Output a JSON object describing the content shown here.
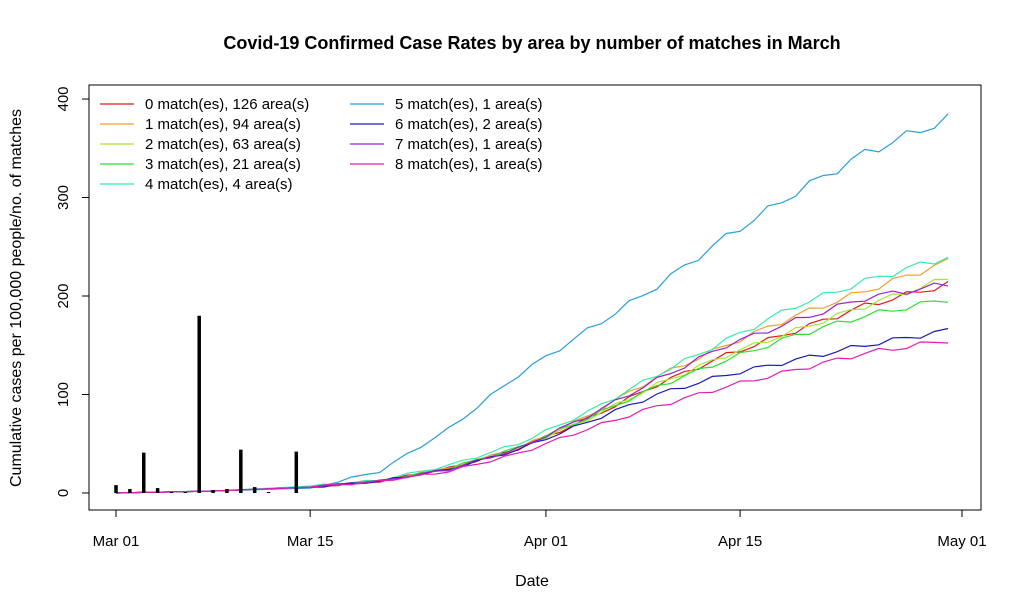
{
  "chart_data": {
    "type": "line",
    "title": "Covid-19 Confirmed Case Rates by area by number of matches in March",
    "xlabel": "Date",
    "ylabel": "Cumulative cases per 100,000 people/no. of matches",
    "x_start": "2020-03-01",
    "x_end": "2020-04-30",
    "xlim": [
      "2020-03-01",
      "2020-05-01"
    ],
    "ylim": [
      0,
      400
    ],
    "x_ticks": [
      "Mar 01",
      "Mar 15",
      "Apr 01",
      "Apr 15",
      "May 01"
    ],
    "y_ticks": [
      "0",
      "100",
      "200",
      "300",
      "400"
    ],
    "legend_position": "top-left",
    "grid": false,
    "series": [
      {
        "name": "0 match(es), 126 area(s)",
        "color": "#e41a1c",
        "x": [
          "2020-03-01",
          "2020-03-08",
          "2020-03-15",
          "2020-03-20",
          "2020-03-25",
          "2020-03-30",
          "2020-04-04",
          "2020-04-09",
          "2020-04-14",
          "2020-04-19",
          "2020-04-24",
          "2020-04-30"
        ],
        "values": [
          0,
          2,
          6,
          12,
          25,
          45,
          75,
          110,
          140,
          165,
          190,
          212
        ]
      },
      {
        "name": "1 match(es), 94 area(s)",
        "color": "#f0a030",
        "x": [
          "2020-03-01",
          "2020-03-08",
          "2020-03-15",
          "2020-03-20",
          "2020-03-25",
          "2020-03-30",
          "2020-04-04",
          "2020-04-09",
          "2020-04-14",
          "2020-04-19",
          "2020-04-24",
          "2020-04-30"
        ],
        "values": [
          0,
          2,
          6,
          12,
          25,
          45,
          78,
          118,
          150,
          180,
          205,
          235
        ]
      },
      {
        "name": "2 match(es), 63 area(s)",
        "color": "#a6e830",
        "x": [
          "2020-03-01",
          "2020-03-08",
          "2020-03-15",
          "2020-03-20",
          "2020-03-25",
          "2020-03-30",
          "2020-04-04",
          "2020-04-09",
          "2020-04-14",
          "2020-04-19",
          "2020-04-24",
          "2020-04-30"
        ],
        "values": [
          0,
          2,
          6,
          12,
          25,
          45,
          75,
          110,
          140,
          165,
          190,
          218
        ]
      },
      {
        "name": "3 match(es), 21 area(s)",
        "color": "#33dd33",
        "x": [
          "2020-03-01",
          "2020-03-08",
          "2020-03-15",
          "2020-03-20",
          "2020-03-25",
          "2020-03-30",
          "2020-04-04",
          "2020-04-09",
          "2020-04-14",
          "2020-04-19",
          "2020-04-24",
          "2020-04-30"
        ],
        "values": [
          0,
          2,
          6,
          12,
          25,
          46,
          76,
          108,
          135,
          160,
          180,
          197
        ]
      },
      {
        "name": "4 match(es), 4 area(s)",
        "color": "#33eeaa",
        "x": [
          "2020-03-01",
          "2020-03-08",
          "2020-03-15",
          "2020-03-20",
          "2020-03-25",
          "2020-03-30",
          "2020-04-04",
          "2020-04-09",
          "2020-04-14",
          "2020-04-19",
          "2020-04-24",
          "2020-04-30"
        ],
        "values": [
          0,
          2,
          7,
          13,
          28,
          50,
          82,
          120,
          155,
          190,
          215,
          240
        ]
      },
      {
        "name": "5 match(es), 1 area(s)",
        "color": "#2b9fd8",
        "x": [
          "2020-03-01",
          "2020-03-08",
          "2020-03-15",
          "2020-03-20",
          "2020-03-25",
          "2020-03-30",
          "2020-04-04",
          "2020-04-09",
          "2020-04-14",
          "2020-04-19",
          "2020-04-24",
          "2020-04-30"
        ],
        "values": [
          0,
          2,
          5,
          22,
          65,
          120,
          165,
          210,
          260,
          305,
          345,
          380
        ]
      },
      {
        "name": "6 match(es), 2 area(s)",
        "color": "#1a1ab8",
        "x": [
          "2020-03-01",
          "2020-03-08",
          "2020-03-15",
          "2020-03-20",
          "2020-03-25",
          "2020-03-30",
          "2020-04-04",
          "2020-04-09",
          "2020-04-14",
          "2020-04-19",
          "2020-04-24",
          "2020-04-30"
        ],
        "values": [
          0,
          2,
          6,
          12,
          24,
          44,
          72,
          100,
          120,
          135,
          150,
          165
        ]
      },
      {
        "name": "7 match(es), 1 area(s)",
        "color": "#9922cc",
        "x": [
          "2020-03-01",
          "2020-03-08",
          "2020-03-15",
          "2020-03-20",
          "2020-03-25",
          "2020-03-30",
          "2020-04-04",
          "2020-04-09",
          "2020-04-14",
          "2020-04-19",
          "2020-04-24",
          "2020-04-30"
        ],
        "values": [
          0,
          2,
          6,
          12,
          24,
          45,
          78,
          115,
          150,
          175,
          198,
          212
        ]
      },
      {
        "name": "8 match(es), 1 area(s)",
        "color": "#e020b0",
        "x": [
          "2020-03-01",
          "2020-03-08",
          "2020-03-15",
          "2020-03-20",
          "2020-03-25",
          "2020-03-30",
          "2020-04-04",
          "2020-04-09",
          "2020-04-14",
          "2020-04-19",
          "2020-04-24",
          "2020-04-30"
        ],
        "values": [
          0,
          2,
          6,
          12,
          22,
          40,
          65,
          88,
          108,
          125,
          142,
          155
        ]
      }
    ],
    "spikes": {
      "color": "#000000",
      "x": [
        "2020-03-01",
        "2020-03-02",
        "2020-03-03",
        "2020-03-04",
        "2020-03-05",
        "2020-03-06",
        "2020-03-07",
        "2020-03-08",
        "2020-03-09",
        "2020-03-10",
        "2020-03-11",
        "2020-03-12",
        "2020-03-13",
        "2020-03-14"
      ],
      "values": [
        8,
        4,
        41,
        5,
        1,
        1,
        180,
        3,
        4,
        44,
        6,
        1,
        0,
        42
      ]
    }
  }
}
